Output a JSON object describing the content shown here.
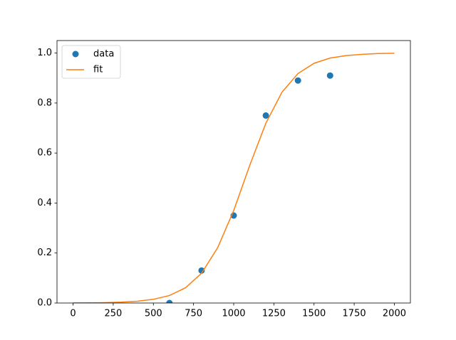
{
  "chart_data": {
    "type": "scatter",
    "series": [
      {
        "name": "data",
        "color": "#1f77b4",
        "type": "scatter",
        "x": [
          600,
          800,
          1000,
          1200,
          1400,
          1600
        ],
        "values": [
          0.0,
          0.13,
          0.35,
          0.75,
          0.89,
          0.91
        ]
      },
      {
        "name": "fit",
        "color": "#ff7f0e",
        "type": "line",
        "x": [
          0,
          100,
          200,
          300,
          400,
          500,
          600,
          700,
          800,
          900,
          1000,
          1100,
          1200,
          1300,
          1400,
          1500,
          1600,
          1700,
          1800,
          1900,
          2000
        ],
        "values": [
          0.0004,
          0.0008,
          0.0016,
          0.0034,
          0.0071,
          0.0148,
          0.03,
          0.061,
          0.119,
          0.221,
          0.37,
          0.551,
          0.719,
          0.843,
          0.918,
          0.959,
          0.98,
          0.99,
          0.995,
          0.998,
          0.999
        ]
      }
    ],
    "xlim": [
      -100,
      2100
    ],
    "ylim": [
      0,
      1.05
    ],
    "xticks": [
      0,
      250,
      500,
      750,
      1000,
      1250,
      1500,
      1750,
      2000
    ],
    "yticks": [
      {
        "value": 0,
        "label": "0.0"
      },
      {
        "value": 0.2,
        "label": "0.2"
      },
      {
        "value": 0.4,
        "label": "0.4"
      },
      {
        "value": 0.6,
        "label": "0.6"
      },
      {
        "value": 0.8,
        "label": "0.8"
      },
      {
        "value": 1,
        "label": "1.0"
      }
    ],
    "legend": "upper left"
  }
}
